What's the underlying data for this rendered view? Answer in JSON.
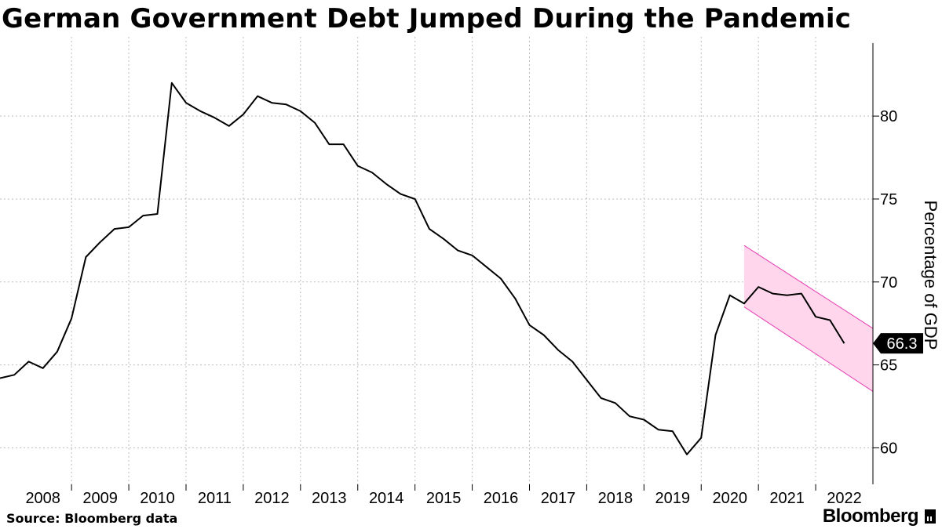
{
  "title": "German Government Debt Jumped During the Pandemic",
  "source": "Source: Bloomberg data",
  "brand": "Bloomberg",
  "colors": {
    "line": "#000000",
    "channel_fill": "#ffd6ec",
    "channel_edge": "#e53fb2",
    "grid": "#bdbdbd"
  },
  "chart_data": {
    "type": "line",
    "title": "German Government Debt Jumped During the Pandemic",
    "ylabel": "Percentage of GDP",
    "xlim": [
      2007.75,
      2023.0
    ],
    "ylim": [
      57.8,
      84.4
    ],
    "y_ticks": [
      60,
      65,
      70,
      75,
      80
    ],
    "x_ticks": [
      "2008",
      "2009",
      "2010",
      "2011",
      "2012",
      "2013",
      "2014",
      "2015",
      "2016",
      "2017",
      "2018",
      "2019",
      "2020",
      "2021",
      "2022"
    ],
    "grid": true,
    "y_axis_position": "right",
    "last_value_label": "66.3",
    "series": [
      {
        "x": [
          2007.75,
          2008.0,
          2008.25,
          2008.5,
          2008.75,
          2009.0,
          2009.25,
          2009.5,
          2009.75,
          2010.0,
          2010.25,
          2010.5,
          2010.75,
          2011.0,
          2011.25,
          2011.5,
          2011.75,
          2012.0,
          2012.25,
          2012.5,
          2012.75,
          2013.0,
          2013.25,
          2013.5,
          2013.75,
          2014.0,
          2014.25,
          2014.5,
          2014.75,
          2015.0,
          2015.25,
          2015.5,
          2015.75,
          2016.0,
          2016.25,
          2016.5,
          2016.75,
          2017.0,
          2017.25,
          2017.5,
          2017.75,
          2018.0,
          2018.25,
          2018.5,
          2018.75,
          2019.0,
          2019.25,
          2019.5,
          2019.75,
          2020.0,
          2020.25,
          2020.5,
          2020.75,
          2021.0,
          2021.25,
          2021.5,
          2021.75,
          2022.0,
          2022.25,
          2022.5
        ],
        "y": [
          64.2,
          64.4,
          65.2,
          64.8,
          65.8,
          67.8,
          71.5,
          72.4,
          73.2,
          73.3,
          74.0,
          74.1,
          82.0,
          80.8,
          80.3,
          79.9,
          79.4,
          80.1,
          81.2,
          80.8,
          80.7,
          80.3,
          79.6,
          78.3,
          78.3,
          77.0,
          76.6,
          75.9,
          75.3,
          75.0,
          73.2,
          72.6,
          71.9,
          71.6,
          70.9,
          70.2,
          69.0,
          67.4,
          66.8,
          65.9,
          65.2,
          64.1,
          63.0,
          62.7,
          61.9,
          61.7,
          61.1,
          61.0,
          59.6,
          60.6,
          66.8,
          69.2,
          68.7,
          69.7,
          69.3,
          69.2,
          69.3,
          67.9,
          67.7,
          66.3
        ]
      }
    ],
    "channel": {
      "x": [
        2020.75,
        2023.0
      ],
      "upper": [
        72.2,
        67.2
      ],
      "lower": [
        68.5,
        63.4
      ]
    }
  }
}
